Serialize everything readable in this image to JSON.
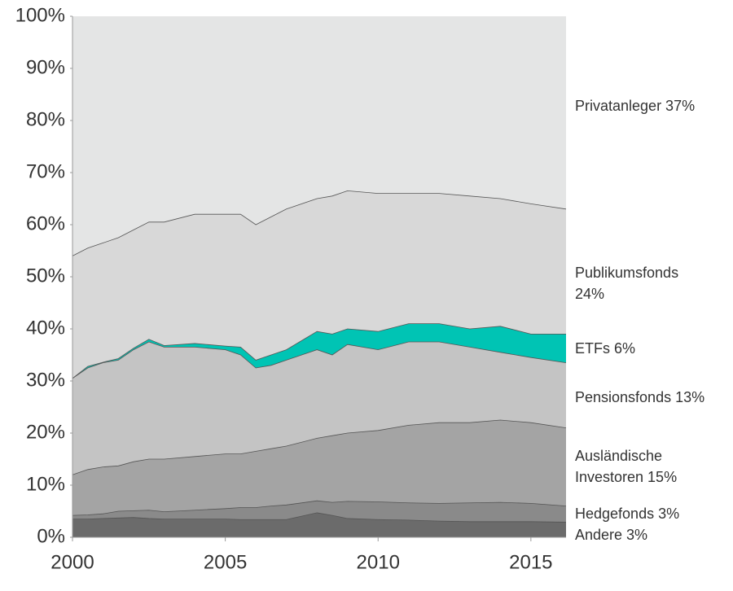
{
  "chart_data": {
    "type": "stacked_area",
    "x": [
      2000,
      2000.5,
      2001,
      2001.5,
      2002,
      2002.5,
      2003,
      2004,
      2005,
      2005.5,
      2006,
      2006.5,
      2007,
      2008,
      2008.5,
      2009,
      2010,
      2011,
      2012,
      2013,
      2014,
      2015,
      2016.15
    ],
    "xlim": [
      2000,
      2016.15
    ],
    "xticks": [
      2000,
      2005,
      2010,
      2015
    ],
    "ylim": [
      0,
      100
    ],
    "yticks": [
      {
        "value": 0,
        "label": "0%"
      },
      {
        "value": 10,
        "label": "10%"
      },
      {
        "value": 20,
        "label": "20%"
      },
      {
        "value": 30,
        "label": "30%"
      },
      {
        "value": 40,
        "label": "40%"
      },
      {
        "value": 50,
        "label": "50%"
      },
      {
        "value": 60,
        "label": "60%"
      },
      {
        "value": 70,
        "label": "70%"
      },
      {
        "value": 80,
        "label": "80%"
      },
      {
        "value": 90,
        "label": "90%"
      },
      {
        "value": 100,
        "label": "100%"
      }
    ],
    "series": [
      {
        "name": "Andere 3%",
        "color": "#6b6b6b",
        "values": [
          3.5,
          3.5,
          3.6,
          3.7,
          3.8,
          3.6,
          3.5,
          3.5,
          3.5,
          3.4,
          3.4,
          3.4,
          3.4,
          4.7,
          4.2,
          3.6,
          3.4,
          3.3,
          3.1,
          3,
          3,
          3,
          2.9
        ]
      },
      {
        "name": "Hedgefonds 3%",
        "color": "#8a8a8a",
        "values": [
          0.7,
          0.8,
          0.9,
          1.3,
          1.3,
          1.6,
          1.4,
          1.7,
          2.0,
          2.3,
          2.3,
          2.6,
          2.8,
          2.3,
          2.5,
          3.3,
          3.4,
          3.3,
          3.4,
          3.6,
          3.7,
          3.5,
          3.1
        ]
      },
      {
        "name": "Ausländische\nInvestoren 15%",
        "color": "#a4a4a4",
        "values": [
          7.8,
          8.7,
          9,
          8.7,
          9.4,
          9.8,
          10.1,
          10.3,
          10.5,
          10.3,
          10.8,
          11,
          11.3,
          12,
          12.8,
          13.1,
          13.7,
          14.9,
          15.5,
          15.4,
          15.8,
          15.5,
          15
        ]
      },
      {
        "name": "Pensionsfonds 13%",
        "color": "#c4c4c4",
        "values": [
          18.5,
          19.5,
          20,
          20.3,
          21.5,
          22.5,
          21.5,
          21,
          20,
          19,
          16,
          16,
          16.5,
          17,
          15.5,
          17,
          15.5,
          16,
          15.5,
          14.5,
          13,
          12.5,
          12.5
        ]
      },
      {
        "name": "ETFs 6%",
        "color": "#00c4b4",
        "values": [
          0,
          0.3,
          0.1,
          0.3,
          0.3,
          0.5,
          0.3,
          0.7,
          0.7,
          1.5,
          1.5,
          2,
          2,
          3.5,
          4,
          3,
          3.5,
          3.5,
          3.5,
          3.5,
          5,
          4.5,
          5.5
        ]
      },
      {
        "name": "Publikumsfonds\n24%",
        "color": "#d8d8d8",
        "values": [
          23.5,
          22.7,
          22.9,
          23.2,
          22.7,
          22.5,
          23.7,
          24.8,
          25.3,
          25.5,
          26,
          26.5,
          27,
          25.5,
          26.5,
          26.5,
          26.5,
          25,
          25,
          25.5,
          24.5,
          25,
          24
        ]
      },
      {
        "name": "Privatanleger 37%",
        "color": "#e4e5e5",
        "values": [
          46,
          44.5,
          43.5,
          42.5,
          41,
          39.5,
          39.5,
          38,
          38,
          38,
          40,
          38.5,
          37,
          35,
          34.5,
          33.5,
          34,
          34,
          34,
          34.5,
          35,
          36,
          37
        ]
      }
    ]
  }
}
